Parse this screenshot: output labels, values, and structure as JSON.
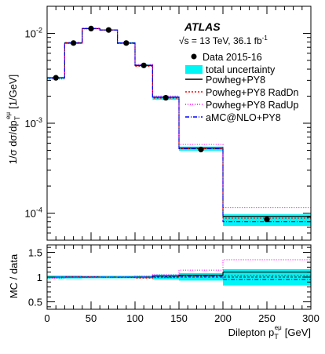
{
  "chart_data": [
    {
      "type": "line",
      "panel": "main",
      "experiment": "ATLAS",
      "energy_label": "√s = 13 TeV, 36.1 fb",
      "energy_superscript": "-1",
      "ylabel_main": "1/σ dσ/dp",
      "ylabel_sub": "T",
      "ylabel_sup": "eμ",
      "ylabel_unit": "[1/GeV]",
      "y_scale": "log",
      "ylim": [
        5e-05,
        0.02
      ],
      "xlim": [
        0,
        300
      ],
      "y_ticks": [
        {
          "value": 0.01,
          "base": "10",
          "exp": "-2"
        },
        {
          "value": 0.001,
          "base": "10",
          "exp": "-3"
        },
        {
          "value": 0.0001,
          "base": "10",
          "exp": "-4"
        }
      ],
      "bin_edges": [
        0,
        20,
        40,
        60,
        80,
        100,
        120,
        150,
        200,
        300
      ],
      "data_x": [
        10,
        30,
        50,
        70,
        90,
        110,
        135,
        175,
        250
      ],
      "data_y": [
        0.0032,
        0.0078,
        0.0113,
        0.0109,
        0.0078,
        0.0044,
        0.00192,
        0.00051,
        8.5e-05
      ],
      "uncertainty_band": {
        "low": [
          0.00312,
          0.00765,
          0.01115,
          0.01075,
          0.00765,
          0.0043,
          0.00182,
          0.000495,
          7.2e-05
        ],
        "high": [
          0.00328,
          0.00795,
          0.01145,
          0.01105,
          0.00795,
          0.0045,
          0.00198,
          0.00055,
          9.7e-05
        ],
        "color": "#00f5f5"
      },
      "series": [
        {
          "name": "Powheg+PY8",
          "color": "#000000",
          "dash": "",
          "values": [
            0.0032,
            0.0078,
            0.0113,
            0.0109,
            0.0078,
            0.0044,
            0.00195,
            0.00053,
            9.2e-05
          ]
        },
        {
          "name": "Powheg+PY8 RadDn",
          "color": "#ff0000",
          "dash": "2,2",
          "values": [
            0.0032,
            0.0079,
            0.0114,
            0.0109,
            0.0077,
            0.0043,
            0.0019,
            0.00052,
            8.8e-05
          ]
        },
        {
          "name": "Powheg+PY8 RadUp",
          "color": "#ff00ff",
          "dash": "1,2",
          "values": [
            0.0031,
            0.0077,
            0.0112,
            0.0108,
            0.0078,
            0.0045,
            0.00201,
            0.00058,
            0.000115
          ]
        },
        {
          "name": "aMC@NLO+PY8",
          "color": "#0000ff",
          "dash": "5,2,1,2",
          "values": [
            0.0032,
            0.0078,
            0.0113,
            0.0109,
            0.0078,
            0.0044,
            0.00196,
            0.00052,
            8e-05
          ]
        }
      ],
      "legend": {
        "placement": "top-right",
        "data_label": "Data 2015-16",
        "uncertainty_label": "total uncertainty"
      }
    },
    {
      "type": "line",
      "panel": "ratio",
      "ylabel": "MC / data",
      "ylim": [
        0.35,
        1.65
      ],
      "y_ticks": [
        {
          "value": 0.5,
          "label": "0.5"
        },
        {
          "value": 1,
          "label": "1"
        },
        {
          "value": 1.5,
          "label": "1.5"
        }
      ],
      "xlabel_main": "Dilepton p",
      "xlabel_sub": "T",
      "xlabel_sup": "eμ",
      "xlabel_unit": "[GeV]",
      "x_ticks": [
        0,
        50,
        100,
        150,
        200,
        250,
        300
      ],
      "band_low": [
        0.97,
        0.97,
        0.975,
        0.975,
        0.975,
        0.975,
        0.95,
        0.93,
        0.83
      ],
      "band_high": [
        1.03,
        1.03,
        1.025,
        1.025,
        1.025,
        1.025,
        1.05,
        1.08,
        1.16
      ],
      "ratio_series": [
        {
          "name": "Powheg+PY8",
          "values": [
            1.0,
            1.0,
            1.0,
            1.0,
            1.0,
            1.0,
            1.02,
            1.04,
            1.1
          ]
        },
        {
          "name": "Powheg+PY8 RadDn",
          "values": [
            1.0,
            1.01,
            1.01,
            1.0,
            0.99,
            0.98,
            0.99,
            1.02,
            1.03
          ]
        },
        {
          "name": "Powheg+PY8 RadUp",
          "values": [
            0.98,
            0.99,
            0.99,
            0.99,
            1.0,
            1.02,
            1.05,
            1.14,
            1.35
          ]
        },
        {
          "name": "aMC@NLO+PY8",
          "values": [
            1.0,
            1.0,
            1.0,
            1.0,
            1.0,
            1.0,
            1.02,
            1.02,
            0.95
          ]
        }
      ]
    }
  ]
}
